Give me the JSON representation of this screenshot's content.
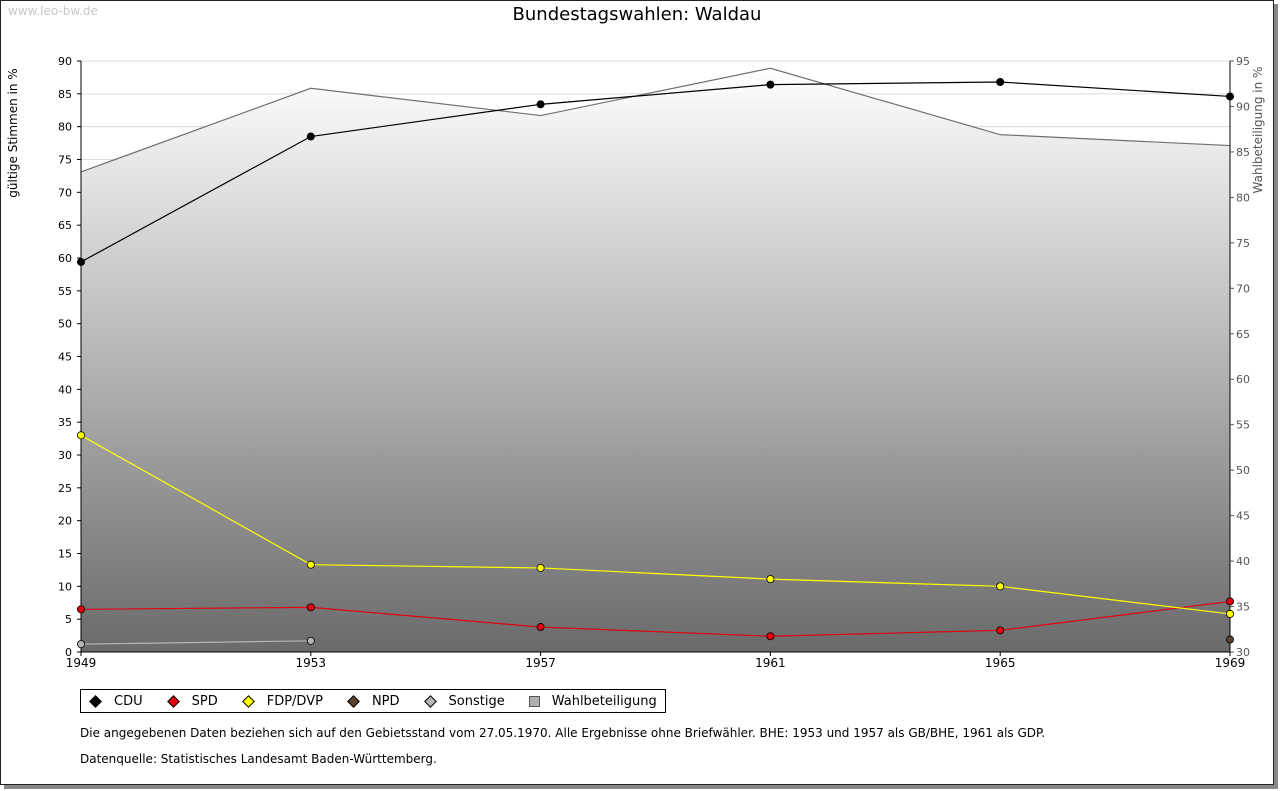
{
  "watermark": "www.leo-bw.de",
  "colors": {
    "CDU": "#000000",
    "SPD": "#e3000f",
    "FDP/DVP": "#ffff00",
    "NPD": "#5a4030",
    "Sonstige": "#b4b4b4",
    "Wahlbeteiligung": "#707070"
  },
  "chart_data": {
    "type": "line",
    "title": "Bundestagswahlen: Waldau",
    "x": [
      "1949",
      "1953",
      "1957",
      "1961",
      "1965",
      "1969"
    ],
    "ylabel": "gültige Stimmen in %",
    "ylim": [
      0,
      90
    ],
    "y_ticks": [
      0,
      5,
      10,
      15,
      20,
      25,
      30,
      35,
      40,
      45,
      50,
      55,
      60,
      65,
      70,
      75,
      80,
      85,
      90
    ],
    "y2label": "Wahlbeteiligung in %",
    "y2lim": [
      30,
      95
    ],
    "y2_ticks": [
      30,
      35,
      40,
      45,
      50,
      55,
      60,
      65,
      70,
      75,
      80,
      85,
      90,
      95
    ],
    "grid": true,
    "series": [
      {
        "name": "CDU",
        "values": [
          59.4,
          78.5,
          83.4,
          86.4,
          86.8,
          84.6
        ]
      },
      {
        "name": "SPD",
        "values": [
          6.5,
          6.8,
          3.8,
          2.4,
          3.3,
          7.7
        ]
      },
      {
        "name": "FDP/DVP",
        "values": [
          33.0,
          13.3,
          12.8,
          11.1,
          10.0,
          5.8
        ]
      },
      {
        "name": "NPD",
        "values": [
          null,
          null,
          null,
          null,
          null,
          1.9
        ]
      },
      {
        "name": "Sonstige",
        "values": [
          1.2,
          1.7,
          null,
          null,
          null,
          null
        ]
      },
      {
        "name": "Wahlbeteiligung",
        "axis": "right",
        "type": "area",
        "values": [
          82.8,
          92.0,
          89.0,
          94.2,
          86.9,
          85.7
        ]
      }
    ]
  },
  "legend": [
    {
      "label": "CDU",
      "kind": "diamond"
    },
    {
      "label": "SPD",
      "kind": "diamond"
    },
    {
      "label": "FDP/DVP",
      "kind": "diamond"
    },
    {
      "label": "NPD",
      "kind": "diamond"
    },
    {
      "label": "Sonstige",
      "kind": "diamond"
    },
    {
      "label": "Wahlbeteiligung",
      "kind": "square"
    }
  ],
  "notes": {
    "line1": "Die angegebenen Daten beziehen sich auf den Gebietsstand vom 27.05.1970. Alle Ergebnisse ohne Briefwähler. BHE: 1953 und 1957 als GB/BHE, 1961 als GDP.",
    "line2": "Datenquelle: Statistisches Landesamt Baden-Württemberg."
  }
}
